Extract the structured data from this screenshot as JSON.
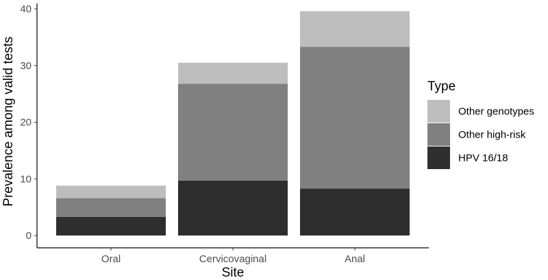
{
  "chart_data": {
    "type": "bar",
    "stacked": true,
    "xlabel": "Site",
    "ylabel": "Prevalence among valid tests",
    "ylim": [
      0,
      41
    ],
    "yticks": [
      0,
      10,
      20,
      30,
      40
    ],
    "categories": [
      "Oral",
      "Cervicovaginal",
      "Anal"
    ],
    "series": [
      {
        "name": "HPV 16/18",
        "color": "#2e2e2e",
        "values": [
          3.3,
          9.7,
          8.3
        ]
      },
      {
        "name": "Other high-risk",
        "color": "#808080",
        "values": [
          3.3,
          17.1,
          25.0
        ]
      },
      {
        "name": "Other genotypes",
        "color": "#bdbdbd",
        "values": [
          2.2,
          3.7,
          6.3
        ]
      }
    ],
    "legend": {
      "title": "Type",
      "position": "right",
      "order": [
        "Other genotypes",
        "Other high-risk",
        "HPV 16/18"
      ]
    },
    "grid": false
  }
}
